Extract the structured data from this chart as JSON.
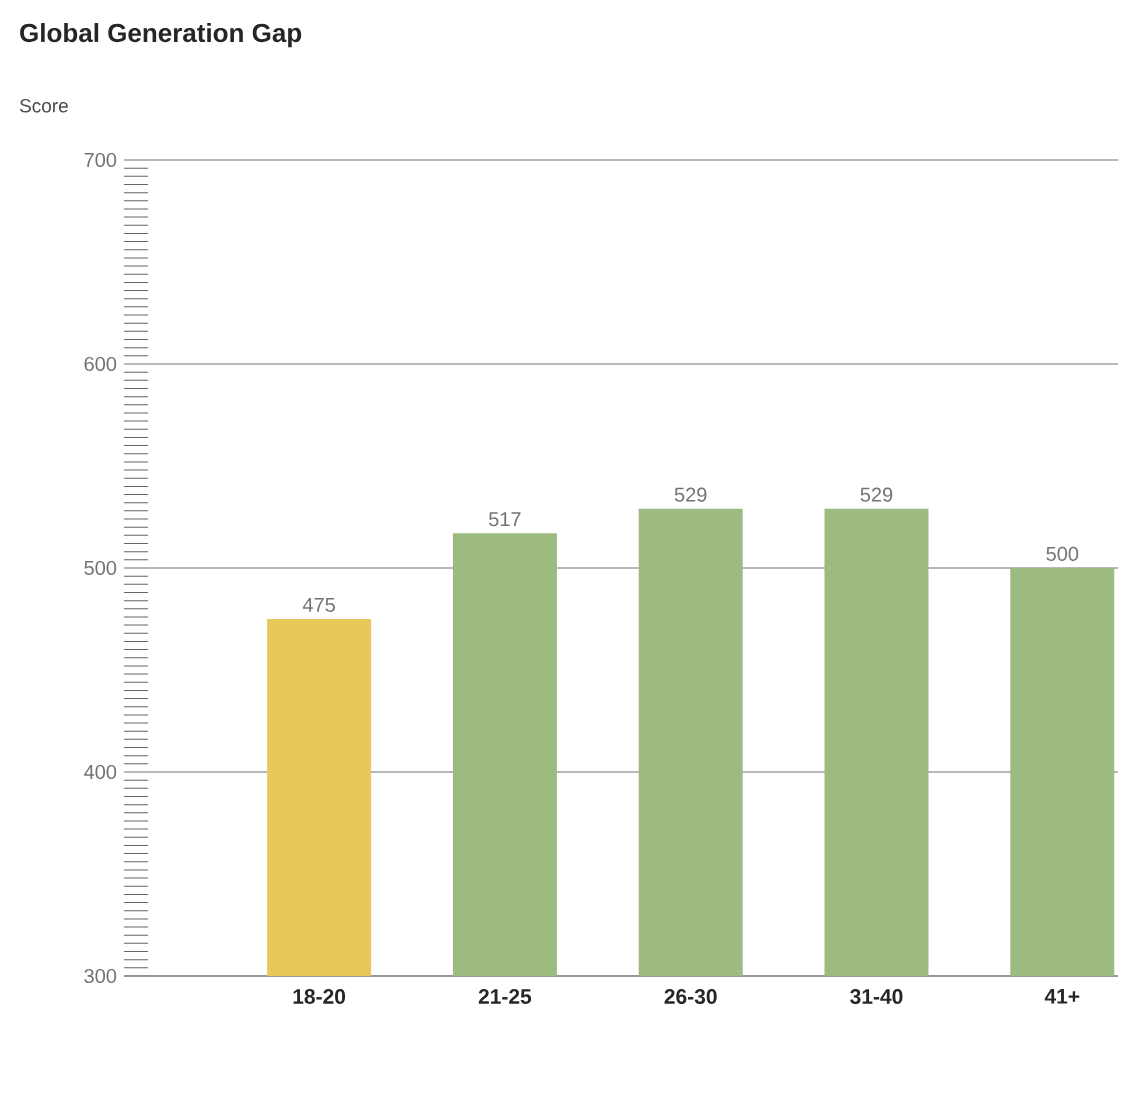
{
  "chart_data": {
    "type": "bar",
    "title": "Global Generation Gap",
    "ylabel": "Score",
    "categories": [
      "18-20",
      "21-25",
      "26-30",
      "31-40",
      "41+"
    ],
    "values": [
      475,
      517,
      529,
      529,
      500
    ],
    "colors": [
      "#e8c85a",
      "#9dbb80",
      "#9dbb80",
      "#9dbb80",
      "#9dbb80"
    ],
    "ylim": [
      300,
      700
    ],
    "yticks": [
      300,
      400,
      500,
      600,
      700
    ],
    "grid": "y",
    "data_labels": true
  }
}
